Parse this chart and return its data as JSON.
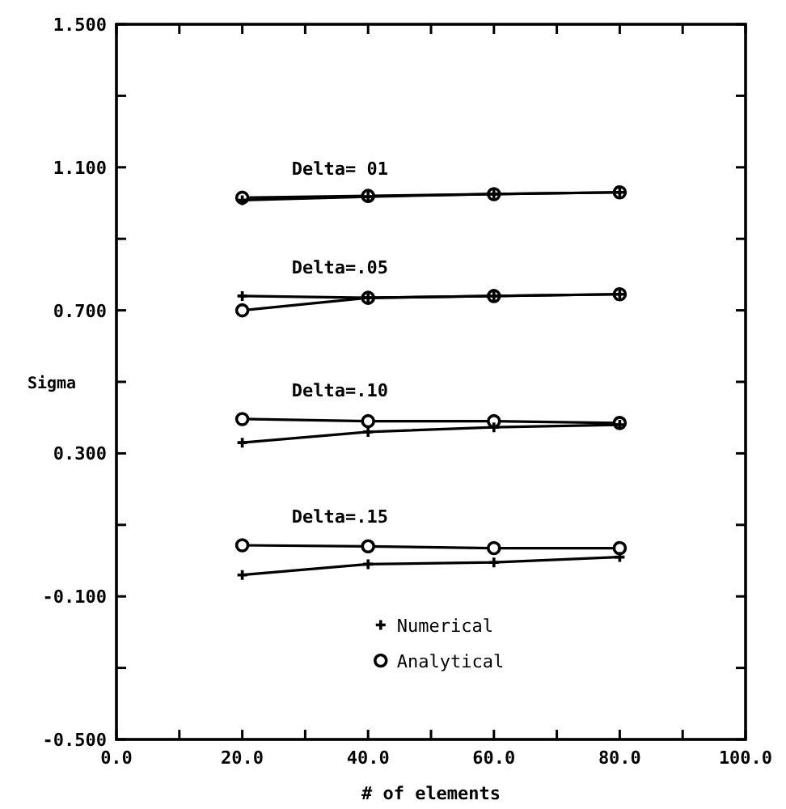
{
  "chart_data": {
    "type": "line",
    "xlabel": "# of elements",
    "ylabel": "Sigma",
    "x": [
      20,
      40,
      60,
      80
    ],
    "series": [
      {
        "marker": "cross",
        "color": "#000000",
        "values": [
          1.008,
          1.018,
          1.025,
          1.03
        ]
      },
      {
        "marker": "circle",
        "color": "#000000",
        "values": [
          1.015,
          1.02,
          1.025,
          1.03
        ]
      },
      {
        "marker": "cross",
        "color": "#000000",
        "values": [
          0.74,
          0.735,
          0.74,
          0.745
        ]
      },
      {
        "marker": "circle",
        "color": "#000000",
        "values": [
          0.7,
          0.735,
          0.74,
          0.745
        ]
      },
      {
        "marker": "cross",
        "color": "#000000",
        "values": [
          0.33,
          0.36,
          0.373,
          0.38
        ]
      },
      {
        "marker": "circle",
        "color": "#000000",
        "values": [
          0.396,
          0.39,
          0.39,
          0.385
        ]
      },
      {
        "name": "Numerical",
        "marker": "cross",
        "color": "#000000",
        "values": [
          -0.04,
          -0.01,
          -0.005,
          0.01
        ]
      },
      {
        "name": "Analytical",
        "marker": "circle",
        "color": "#000000",
        "values": [
          0.043,
          0.04,
          0.035,
          0.035
        ]
      }
    ],
    "annotations": [
      "Delta= 01",
      "Delta=.05",
      "Delta=.10",
      "Delta=.15"
    ],
    "xlim": [
      0,
      100
    ],
    "xticks": [
      {
        "value": 0,
        "label": "0.0"
      },
      {
        "value": 10,
        "label": null
      },
      {
        "value": 20,
        "label": "20.0"
      },
      {
        "value": 30,
        "label": null
      },
      {
        "value": 40,
        "label": "40.0"
      },
      {
        "value": 50,
        "label": null
      },
      {
        "value": 60,
        "label": "60.0"
      },
      {
        "value": 70,
        "label": null
      },
      {
        "value": 80,
        "label": "80.0"
      },
      {
        "value": 90,
        "label": null
      },
      {
        "value": 100,
        "label": "100.0"
      }
    ],
    "ylim": [
      -0.5,
      1.5
    ],
    "yticks": [
      {
        "value": -0.5,
        "label": "-0.500"
      },
      {
        "value": -0.3,
        "label": null
      },
      {
        "value": -0.1,
        "label": "-0.100"
      },
      {
        "value": 0.1,
        "label": null
      },
      {
        "value": 0.3,
        "label": "0.300"
      },
      {
        "value": 0.5,
        "label": null
      },
      {
        "value": 0.7,
        "label": "0.700"
      },
      {
        "value": 0.9,
        "label": null
      },
      {
        "value": 1.1,
        "label": "1.100"
      },
      {
        "value": 1.3,
        "label": null
      },
      {
        "value": 1.5,
        "label": "1.500"
      }
    ],
    "legend": "bottom"
  }
}
